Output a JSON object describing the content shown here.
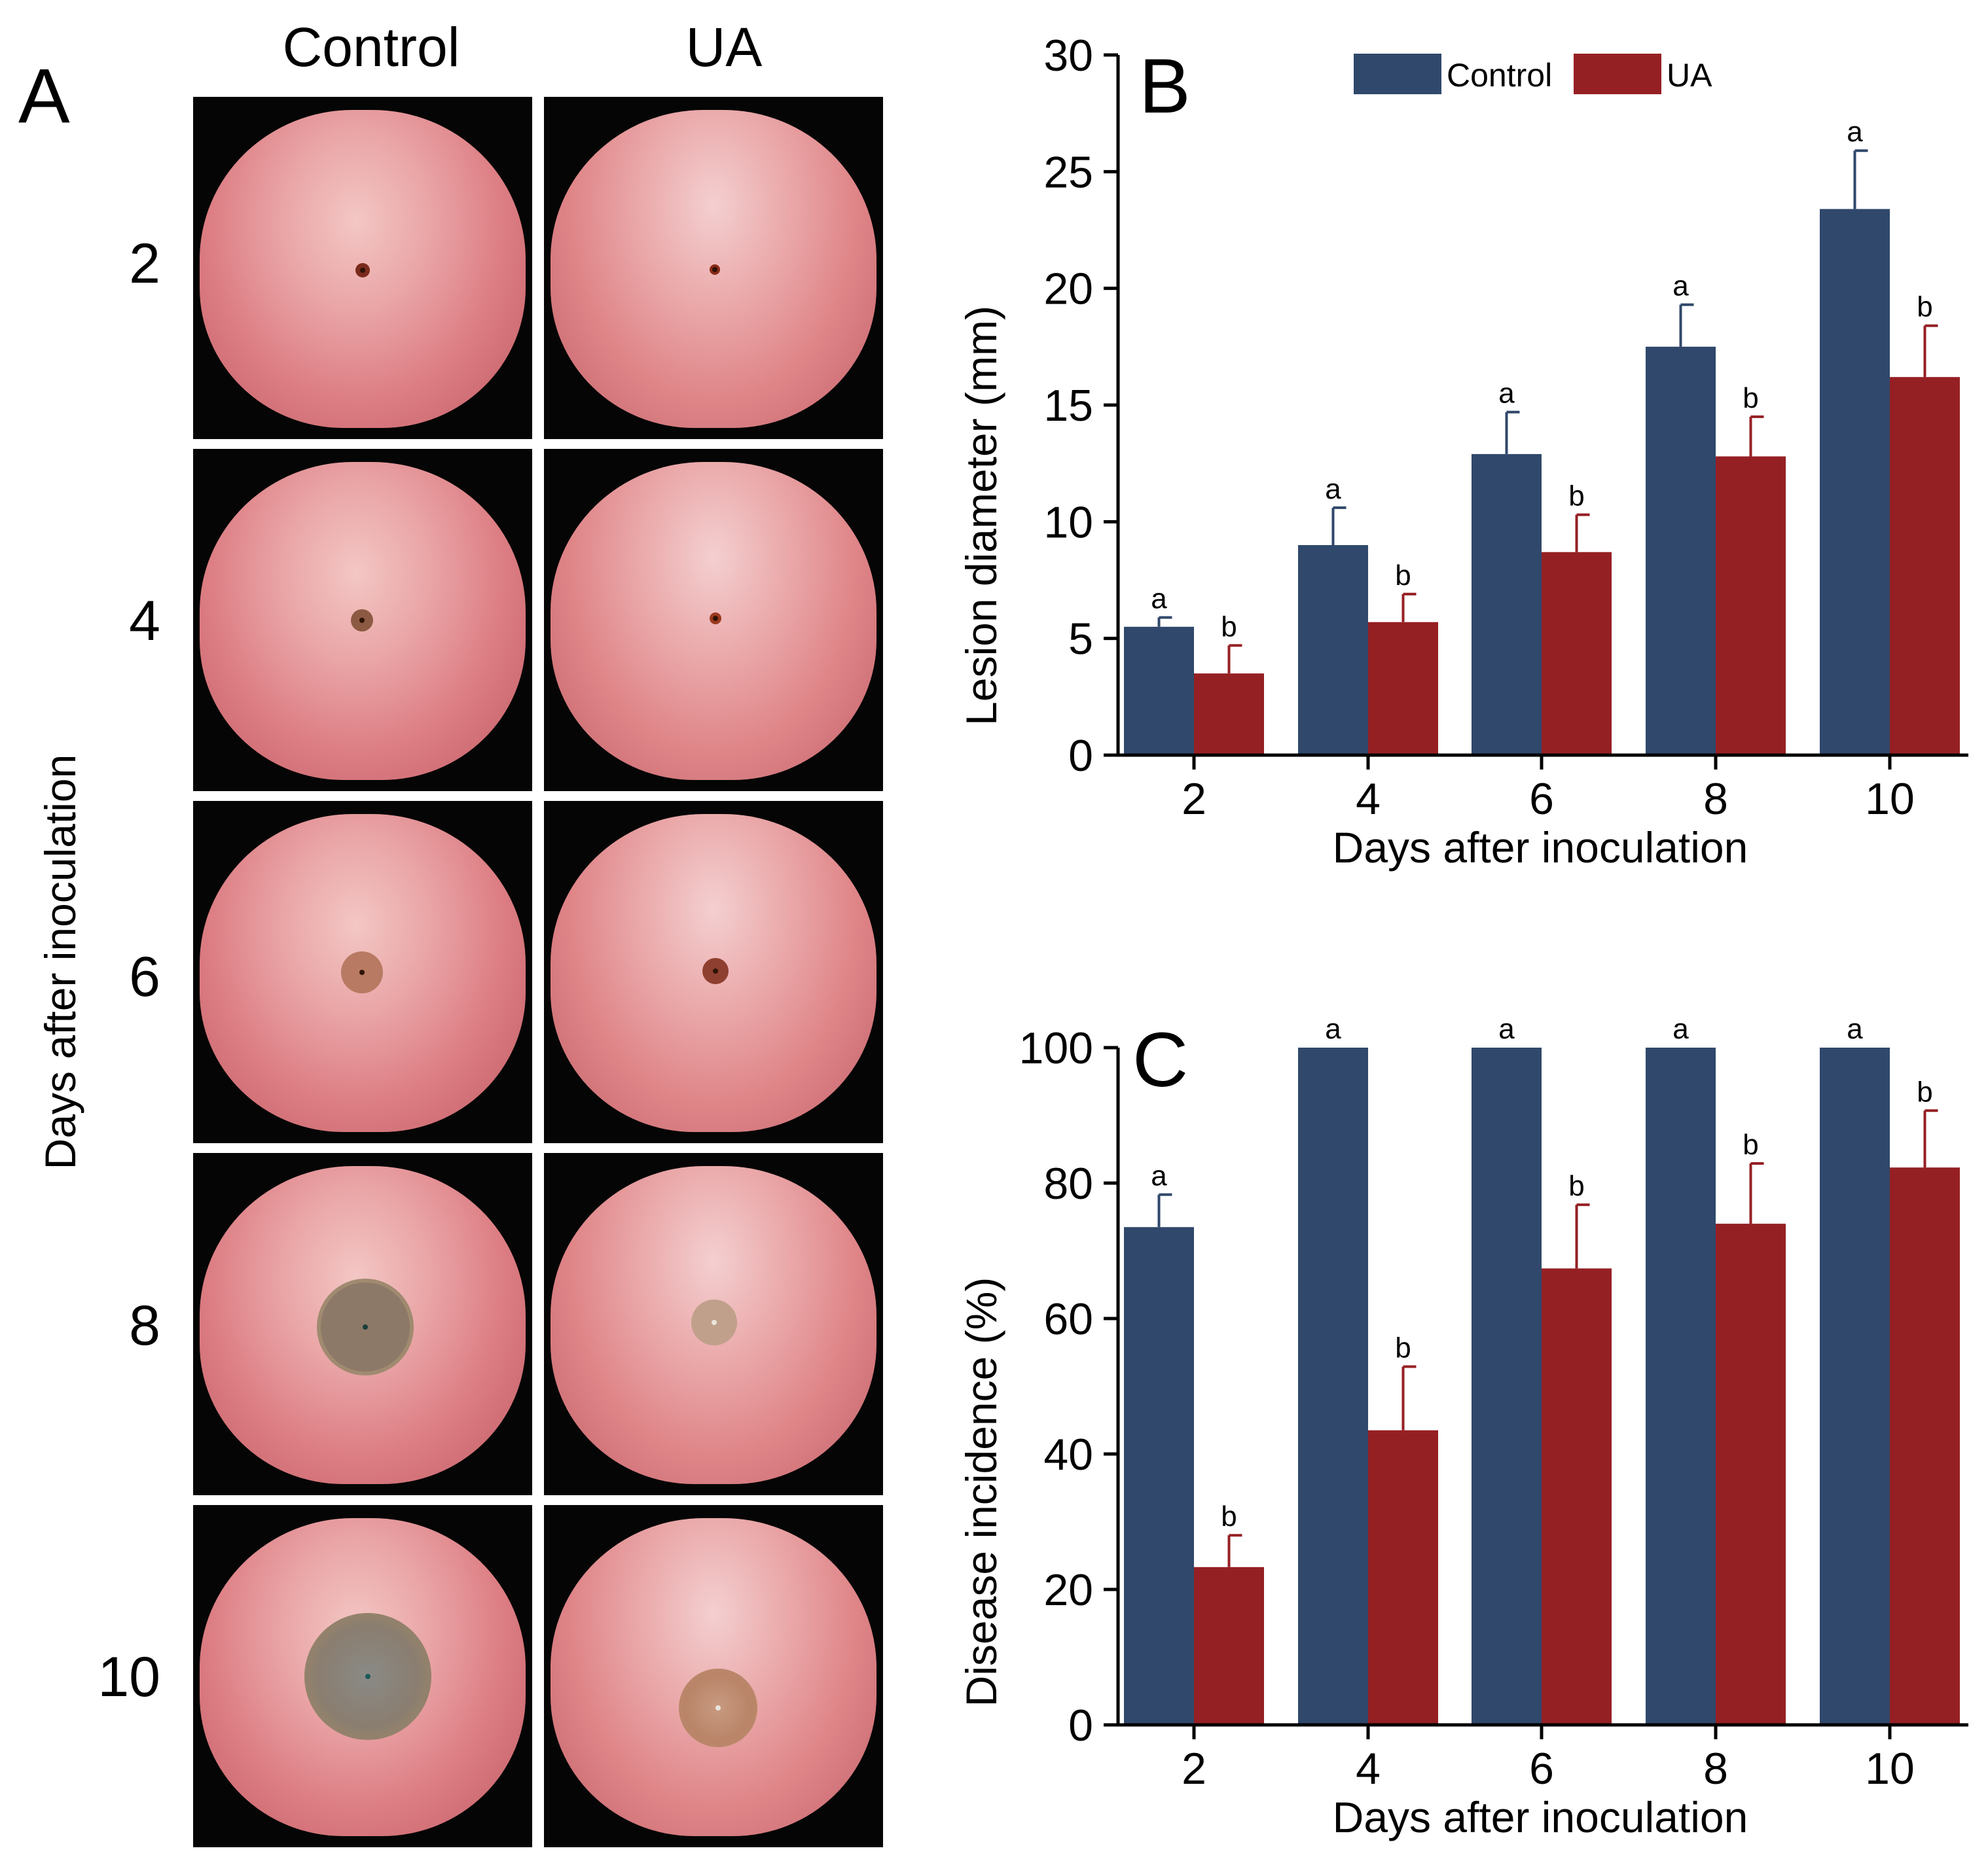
{
  "panel_a": {
    "letter": "A",
    "column_headers": [
      "Control",
      "UA"
    ],
    "row_labels": [
      "2",
      "4",
      "6",
      "8",
      "10"
    ],
    "y_axis_label": "Days after inoculation"
  },
  "chart_data": [
    {
      "type": "bar",
      "panel_letter": "B",
      "categories": [
        "2",
        "4",
        "6",
        "8",
        "10"
      ],
      "series": [
        {
          "name": "Control",
          "color": "#30486b",
          "values": [
            5.5,
            9.0,
            12.9,
            17.5,
            23.4
          ],
          "errors": [
            0.4,
            1.6,
            1.8,
            1.8,
            2.5
          ],
          "letters": [
            "a",
            "a",
            "a",
            "a",
            "a"
          ]
        },
        {
          "name": "UA",
          "color": "#952024",
          "values": [
            3.5,
            5.7,
            8.7,
            12.8,
            16.2
          ],
          "errors": [
            1.2,
            1.2,
            1.6,
            1.7,
            2.2
          ],
          "letters": [
            "b",
            "b",
            "b",
            "b",
            "b"
          ]
        }
      ],
      "xlabel": "Days after inoculation",
      "ylabel": "Lesion diameter (mm)",
      "ylim": [
        0,
        30
      ],
      "yticks": [
        0,
        5,
        10,
        15,
        20,
        25,
        30
      ],
      "legend": "top-center"
    },
    {
      "type": "bar",
      "panel_letter": "C",
      "categories": [
        "2",
        "4",
        "6",
        "8",
        "10"
      ],
      "series": [
        {
          "name": "Control",
          "color": "#30486b",
          "values": [
            73.5,
            100,
            100,
            100,
            100
          ],
          "errors": [
            4.8,
            0,
            0,
            0,
            0
          ],
          "letters": [
            "a",
            "a",
            "a",
            "a",
            "a"
          ]
        },
        {
          "name": "UA",
          "color": "#952024",
          "values": [
            23.3,
            43.5,
            67.4,
            74.0,
            82.3
          ],
          "errors": [
            4.7,
            9.4,
            9.4,
            8.9,
            8.4
          ],
          "letters": [
            "b",
            "b",
            "b",
            "b",
            "b"
          ]
        }
      ],
      "xlabel": "Days after inoculation",
      "ylabel": "Disease incidence (%)",
      "ylim": [
        0,
        100
      ],
      "yticks": [
        0,
        20,
        40,
        60,
        80,
        100
      ],
      "legend": "none"
    }
  ]
}
